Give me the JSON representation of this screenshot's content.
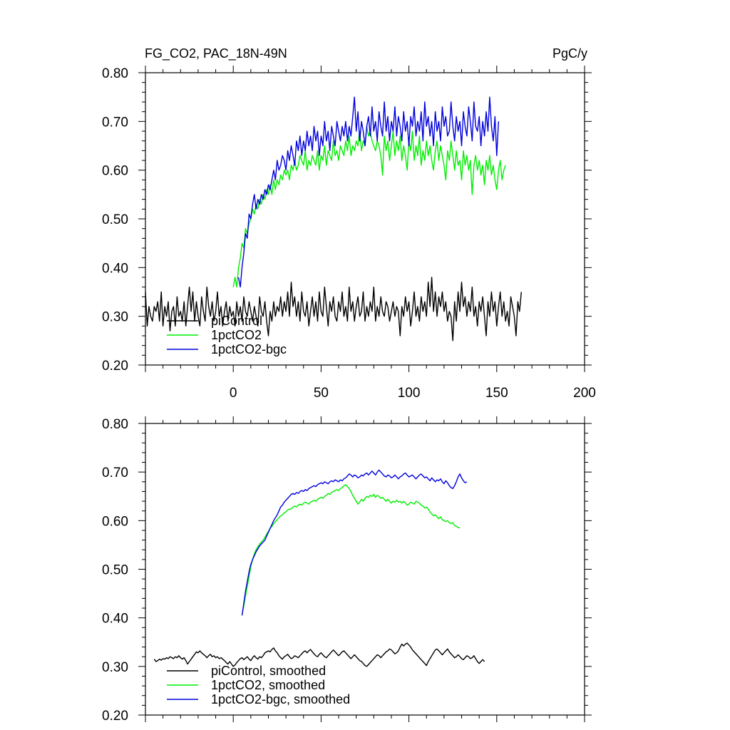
{
  "chart_data": [
    {
      "type": "line",
      "title": "FG_CO2, PAC_18N-49N",
      "units": "PgC/y",
      "xlim": [
        -50,
        200
      ],
      "ylim": [
        0.2,
        0.8
      ],
      "x_ticks": [
        "0",
        "50",
        "100",
        "150",
        "200"
      ],
      "y_ticks": [
        "0.20",
        "0.30",
        "0.40",
        "0.50",
        "0.60",
        "0.70",
        "0.80"
      ],
      "legend_position": "bottom-left",
      "series": [
        {
          "name": "piControl",
          "color": "#000000",
          "x0": -50,
          "values": [
            0.35,
            0.28,
            0.32,
            0.3,
            0.29,
            0.32,
            0.31,
            0.33,
            0.29,
            0.35,
            0.28,
            0.32,
            0.3,
            0.33,
            0.27,
            0.31,
            0.32,
            0.28,
            0.34,
            0.3,
            0.31,
            0.29,
            0.33,
            0.28,
            0.32,
            0.36,
            0.31,
            0.35,
            0.29,
            0.33,
            0.3,
            0.28,
            0.34,
            0.31,
            0.29,
            0.36,
            0.32,
            0.3,
            0.33,
            0.29,
            0.31,
            0.35,
            0.3,
            0.32,
            0.28,
            0.31,
            0.33,
            0.29,
            0.32,
            0.3,
            0.31,
            0.28,
            0.33,
            0.3,
            0.32,
            0.29,
            0.34,
            0.31,
            0.3,
            0.33,
            0.31,
            0.29,
            0.32,
            0.3,
            0.28,
            0.34,
            0.31,
            0.3,
            0.33,
            0.29,
            0.26,
            0.31,
            0.29,
            0.33,
            0.3,
            0.32,
            0.31,
            0.34,
            0.3,
            0.33,
            0.31,
            0.35,
            0.3,
            0.37,
            0.32,
            0.34,
            0.3,
            0.33,
            0.29,
            0.35,
            0.31,
            0.3,
            0.33,
            0.28,
            0.31,
            0.34,
            0.3,
            0.33,
            0.29,
            0.35,
            0.31,
            0.3,
            0.36,
            0.32,
            0.28,
            0.33,
            0.31,
            0.34,
            0.3,
            0.29,
            0.33,
            0.31,
            0.35,
            0.3,
            0.32,
            0.29,
            0.36,
            0.31,
            0.33,
            0.29,
            0.32,
            0.34,
            0.3,
            0.31,
            0.35,
            0.29,
            0.32,
            0.3,
            0.33,
            0.31,
            0.36,
            0.29,
            0.32,
            0.3,
            0.34,
            0.31,
            0.3,
            0.33,
            0.32,
            0.29,
            0.31,
            0.33,
            0.3,
            0.32,
            0.31,
            0.26,
            0.32,
            0.3,
            0.34,
            0.31,
            0.33,
            0.28,
            0.31,
            0.35,
            0.3,
            0.32,
            0.29,
            0.34,
            0.31,
            0.33,
            0.3,
            0.37,
            0.32,
            0.38,
            0.31,
            0.35,
            0.3,
            0.34,
            0.32,
            0.35,
            0.31,
            0.33,
            0.29,
            0.31,
            0.3,
            0.25,
            0.33,
            0.29,
            0.35,
            0.31,
            0.37,
            0.32,
            0.34,
            0.3,
            0.33,
            0.31,
            0.36,
            0.3,
            0.32,
            0.28,
            0.33,
            0.31,
            0.34,
            0.3,
            0.26,
            0.33,
            0.3,
            0.35,
            0.31,
            0.33,
            0.28,
            0.32,
            0.35,
            0.3,
            0.33,
            0.29,
            0.31,
            0.28,
            0.34,
            0.32,
            0.3,
            0.26,
            0.33,
            0.31,
            0.35
          ]
        },
        {
          "name": "1pctCO2",
          "color": "#00ee00",
          "x0": 0,
          "values": [
            0.36,
            0.38,
            0.36,
            0.4,
            0.42,
            0.45,
            0.44,
            0.48,
            0.47,
            0.49,
            0.5,
            0.52,
            0.51,
            0.53,
            0.52,
            0.54,
            0.53,
            0.55,
            0.54,
            0.56,
            0.55,
            0.57,
            0.55,
            0.58,
            0.56,
            0.58,
            0.57,
            0.59,
            0.58,
            0.6,
            0.59,
            0.6,
            0.58,
            0.61,
            0.6,
            0.62,
            0.6,
            0.61,
            0.63,
            0.62,
            0.61,
            0.64,
            0.6,
            0.62,
            0.61,
            0.63,
            0.62,
            0.61,
            0.64,
            0.6,
            0.63,
            0.62,
            0.65,
            0.61,
            0.64,
            0.63,
            0.62,
            0.66,
            0.63,
            0.64,
            0.62,
            0.65,
            0.64,
            0.63,
            0.66,
            0.64,
            0.67,
            0.63,
            0.65,
            0.64,
            0.66,
            0.65,
            0.68,
            0.64,
            0.66,
            0.65,
            0.69,
            0.67,
            0.68,
            0.66,
            0.65,
            0.64,
            0.66,
            0.65,
            0.63,
            0.59,
            0.67,
            0.64,
            0.66,
            0.62,
            0.65,
            0.68,
            0.63,
            0.66,
            0.64,
            0.67,
            0.62,
            0.65,
            0.63,
            0.6,
            0.66,
            0.64,
            0.68,
            0.62,
            0.65,
            0.63,
            0.67,
            0.61,
            0.64,
            0.62,
            0.66,
            0.63,
            0.65,
            0.62,
            0.6,
            0.64,
            0.66,
            0.62,
            0.65,
            0.63,
            0.61,
            0.58,
            0.64,
            0.62,
            0.66,
            0.63,
            0.6,
            0.64,
            0.61,
            0.62,
            0.58,
            0.64,
            0.61,
            0.63,
            0.6,
            0.62,
            0.55,
            0.61,
            0.63,
            0.6,
            0.62,
            0.59,
            0.61,
            0.57,
            0.62,
            0.6,
            0.63,
            0.59,
            0.61,
            0.58,
            0.56,
            0.6,
            0.62,
            0.58,
            0.6,
            0.61
          ]
        },
        {
          "name": "1pctCO2-bgc",
          "color": "#0000dd",
          "x0": 3,
          "values": [
            0.38,
            0.36,
            0.4,
            0.43,
            0.47,
            0.46,
            0.51,
            0.5,
            0.53,
            0.55,
            0.52,
            0.54,
            0.53,
            0.55,
            0.54,
            0.56,
            0.55,
            0.57,
            0.56,
            0.58,
            0.6,
            0.58,
            0.62,
            0.6,
            0.61,
            0.63,
            0.62,
            0.6,
            0.64,
            0.62,
            0.65,
            0.63,
            0.61,
            0.66,
            0.64,
            0.67,
            0.63,
            0.66,
            0.64,
            0.68,
            0.65,
            0.67,
            0.64,
            0.69,
            0.66,
            0.68,
            0.63,
            0.67,
            0.65,
            0.7,
            0.66,
            0.68,
            0.64,
            0.69,
            0.67,
            0.65,
            0.7,
            0.68,
            0.66,
            0.69,
            0.67,
            0.7,
            0.66,
            0.69,
            0.67,
            0.71,
            0.75,
            0.68,
            0.72,
            0.66,
            0.7,
            0.68,
            0.65,
            0.69,
            0.71,
            0.67,
            0.73,
            0.68,
            0.7,
            0.66,
            0.72,
            0.69,
            0.67,
            0.74,
            0.68,
            0.71,
            0.66,
            0.7,
            0.68,
            0.73,
            0.67,
            0.71,
            0.69,
            0.66,
            0.72,
            0.68,
            0.7,
            0.65,
            0.71,
            0.69,
            0.73,
            0.67,
            0.7,
            0.68,
            0.72,
            0.66,
            0.74,
            0.69,
            0.71,
            0.67,
            0.7,
            0.65,
            0.72,
            0.68,
            0.7,
            0.66,
            0.73,
            0.69,
            0.71,
            0.67,
            0.68,
            0.74,
            0.69,
            0.66,
            0.71,
            0.68,
            0.7,
            0.65,
            0.72,
            0.69,
            0.67,
            0.73,
            0.7,
            0.66,
            0.74,
            0.69,
            0.68,
            0.71,
            0.65,
            0.7,
            0.67,
            0.72,
            0.68,
            0.75,
            0.69,
            0.66,
            0.71,
            0.63,
            0.7
          ]
        }
      ]
    },
    {
      "type": "line",
      "xlim": [
        -50,
        200
      ],
      "ylim": [
        0.2,
        0.8
      ],
      "y_ticks": [
        "0.20",
        "0.30",
        "0.40",
        "0.50",
        "0.60",
        "0.70",
        "0.80"
      ],
      "legend_position": "bottom-left",
      "series": [
        {
          "name": "piControl, smoothed",
          "color": "#000000",
          "x0": -45,
          "values": [
            0.315,
            0.31,
            0.312,
            0.315,
            0.313,
            0.316,
            0.315,
            0.318,
            0.316,
            0.32,
            0.318,
            0.316,
            0.32,
            0.318,
            0.322,
            0.318,
            0.315,
            0.318,
            0.312,
            0.305,
            0.31,
            0.315,
            0.32,
            0.325,
            0.33,
            0.328,
            0.332,
            0.328,
            0.325,
            0.322,
            0.318,
            0.322,
            0.325,
            0.32,
            0.322,
            0.318,
            0.32,
            0.316,
            0.318,
            0.315,
            0.312,
            0.308,
            0.305,
            0.31,
            0.305,
            0.3,
            0.303,
            0.308,
            0.312,
            0.316,
            0.318,
            0.314,
            0.317,
            0.32,
            0.315,
            0.312,
            0.318,
            0.322,
            0.318,
            0.315,
            0.32,
            0.318,
            0.322,
            0.328,
            0.33,
            0.332,
            0.33,
            0.335,
            0.338,
            0.332,
            0.328,
            0.322,
            0.318,
            0.315,
            0.32,
            0.322,
            0.325,
            0.32,
            0.316,
            0.318,
            0.322,
            0.32,
            0.318,
            0.322,
            0.326,
            0.33,
            0.332,
            0.328,
            0.332,
            0.335,
            0.33,
            0.326,
            0.322,
            0.32,
            0.325,
            0.328,
            0.324,
            0.32,
            0.318,
            0.322,
            0.326,
            0.33,
            0.334,
            0.33,
            0.326,
            0.322,
            0.326,
            0.33,
            0.332,
            0.328,
            0.324,
            0.32,
            0.316,
            0.32,
            0.324,
            0.32,
            0.316,
            0.312,
            0.31,
            0.306,
            0.302,
            0.3,
            0.304,
            0.308,
            0.312,
            0.316,
            0.32,
            0.324,
            0.322,
            0.318,
            0.322,
            0.326,
            0.33,
            0.332,
            0.336,
            0.334,
            0.33,
            0.326,
            0.328,
            0.332,
            0.34,
            0.346,
            0.342,
            0.346,
            0.348,
            0.344,
            0.34,
            0.334,
            0.33,
            0.326,
            0.322,
            0.318,
            0.314,
            0.31,
            0.306,
            0.302,
            0.31,
            0.316,
            0.322,
            0.328,
            0.334,
            0.336,
            0.332,
            0.328,
            0.324,
            0.328,
            0.332,
            0.336,
            0.33,
            0.326,
            0.322,
            0.318,
            0.32,
            0.324,
            0.32,
            0.316,
            0.314,
            0.318,
            0.322,
            0.32,
            0.316,
            0.318,
            0.322,
            0.316,
            0.31,
            0.306,
            0.31,
            0.314,
            0.31
          ]
        },
        {
          "name": "1pctCO2, smoothed",
          "color": "#00ee00",
          "x0": 5,
          "values": [
            0.405,
            0.425,
            0.445,
            0.465,
            0.485,
            0.505,
            0.52,
            0.532,
            0.54,
            0.546,
            0.552,
            0.556,
            0.56,
            0.566,
            0.572,
            0.578,
            0.584,
            0.588,
            0.594,
            0.598,
            0.602,
            0.606,
            0.61,
            0.612,
            0.616,
            0.618,
            0.622,
            0.624,
            0.624,
            0.628,
            0.63,
            0.628,
            0.632,
            0.634,
            0.632,
            0.636,
            0.638,
            0.636,
            0.634,
            0.638,
            0.64,
            0.642,
            0.64,
            0.644,
            0.646,
            0.648,
            0.646,
            0.65,
            0.652,
            0.656,
            0.654,
            0.658,
            0.66,
            0.662,
            0.664,
            0.662,
            0.666,
            0.668,
            0.672,
            0.674,
            0.67,
            0.666,
            0.66,
            0.652,
            0.646,
            0.64,
            0.634,
            0.638,
            0.644,
            0.64,
            0.646,
            0.65,
            0.648,
            0.652,
            0.65,
            0.654,
            0.648,
            0.652,
            0.65,
            0.646,
            0.648,
            0.644,
            0.64,
            0.644,
            0.64,
            0.636,
            0.64,
            0.638,
            0.642,
            0.638,
            0.64,
            0.636,
            0.64,
            0.636,
            0.632,
            0.634,
            0.638,
            0.636,
            0.634,
            0.64,
            0.638,
            0.636,
            0.632,
            0.63,
            0.626,
            0.628,
            0.624,
            0.618,
            0.614,
            0.61,
            0.612,
            0.608,
            0.604,
            0.608,
            0.602,
            0.6,
            0.598,
            0.6,
            0.596,
            0.594,
            0.596,
            0.59,
            0.588,
            0.586,
            0.585
          ]
        },
        {
          "name": "1pctCO2-bgc, smoothed",
          "color": "#0000dd",
          "x0": 5,
          "values": [
            0.405,
            0.43,
            0.455,
            0.475,
            0.495,
            0.51,
            0.52,
            0.528,
            0.536,
            0.542,
            0.548,
            0.552,
            0.556,
            0.56,
            0.568,
            0.576,
            0.584,
            0.592,
            0.6,
            0.606,
            0.612,
            0.62,
            0.628,
            0.632,
            0.638,
            0.642,
            0.646,
            0.65,
            0.654,
            0.656,
            0.654,
            0.658,
            0.656,
            0.66,
            0.662,
            0.66,
            0.664,
            0.662,
            0.666,
            0.668,
            0.67,
            0.672,
            0.67,
            0.674,
            0.676,
            0.678,
            0.676,
            0.68,
            0.678,
            0.676,
            0.68,
            0.682,
            0.68,
            0.684,
            0.682,
            0.68,
            0.684,
            0.682,
            0.686,
            0.688,
            0.692,
            0.696,
            0.694,
            0.69,
            0.694,
            0.692,
            0.688,
            0.69,
            0.694,
            0.692,
            0.696,
            0.698,
            0.694,
            0.698,
            0.702,
            0.698,
            0.694,
            0.7,
            0.704,
            0.7,
            0.696,
            0.692,
            0.69,
            0.694,
            0.692,
            0.688,
            0.69,
            0.694,
            0.69,
            0.686,
            0.69,
            0.692,
            0.696,
            0.698,
            0.694,
            0.69,
            0.692,
            0.694,
            0.69,
            0.686,
            0.69,
            0.694,
            0.696,
            0.692,
            0.688,
            0.69,
            0.686,
            0.682,
            0.688,
            0.684,
            0.68,
            0.684,
            0.682,
            0.686,
            0.68,
            0.676,
            0.682,
            0.678,
            0.672,
            0.668,
            0.666,
            0.672,
            0.68,
            0.69,
            0.696,
            0.688,
            0.682,
            0.678,
            0.68
          ]
        }
      ]
    }
  ]
}
